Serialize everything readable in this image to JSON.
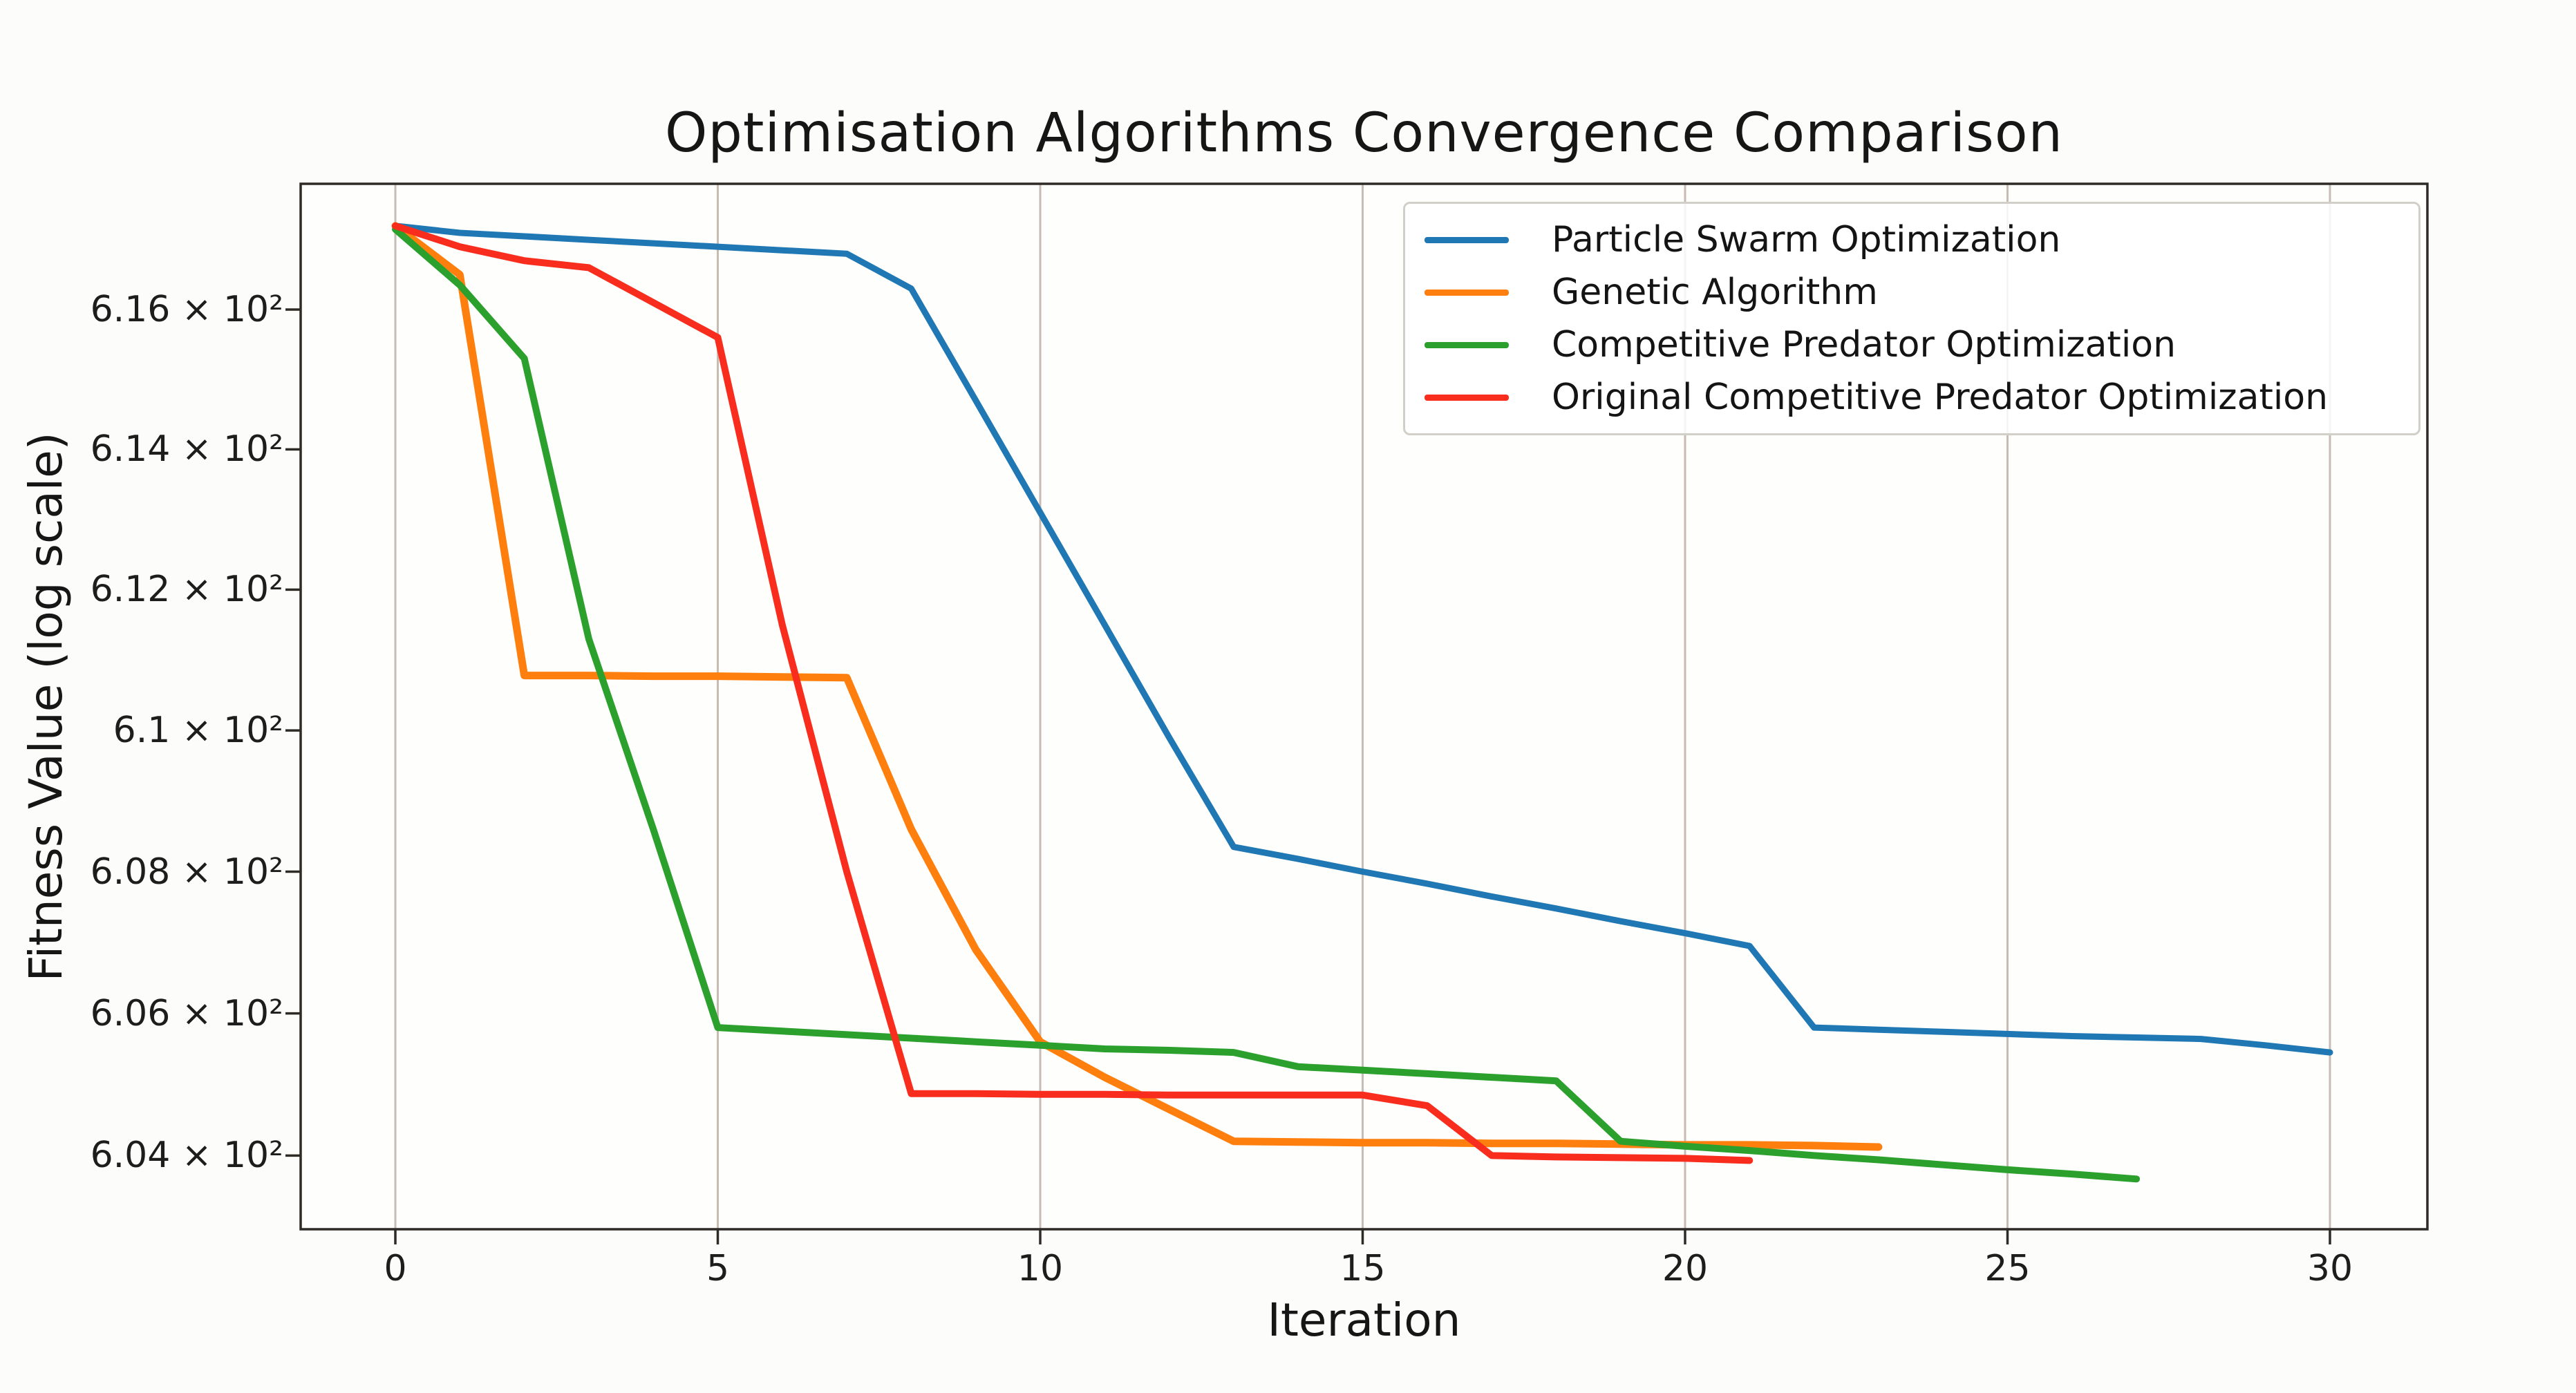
{
  "chart_data": {
    "type": "line",
    "title": "Optimisation Algorithms Convergence Comparison",
    "xlabel": "Iteration",
    "ylabel": "Fitness Value (log scale)",
    "x_ticks": [
      0,
      5,
      10,
      15,
      20,
      25,
      30
    ],
    "y_ticks": [
      {
        "value": 616,
        "label": "6.16 × 10²"
      },
      {
        "value": 614,
        "label": "6.14 × 10²"
      },
      {
        "value": 612,
        "label": "6.12 × 10²"
      },
      {
        "value": 610,
        "label": "6.1 × 10²"
      },
      {
        "value": 608,
        "label": "6.08 × 10²"
      },
      {
        "value": 606,
        "label": "6.06 × 10²"
      },
      {
        "value": 604,
        "label": "6.04 × 10²"
      }
    ],
    "xlim": [
      -1.5,
      31.5
    ],
    "ylim": [
      602.9,
      617.75
    ],
    "y_scale": "log",
    "grid": "vertical-only",
    "legend_position": "upper right",
    "colors": {
      "grid": "#c6bcb3",
      "spine": "#2e2a26",
      "tick_text": "#1d1d1d",
      "background": "#fcfcfa",
      "plot_background": "#fefefd"
    },
    "series": [
      {
        "name": "Particle Swarm Optimization",
        "color": "#1f77b4",
        "line_width": 9,
        "x": [
          0,
          1,
          2,
          3,
          4,
          5,
          6,
          7,
          8,
          9,
          10,
          11,
          12,
          13,
          14,
          15,
          16,
          17,
          18,
          19,
          20,
          21,
          22,
          23,
          24,
          25,
          26,
          27,
          28,
          29,
          30
        ],
        "y": [
          617.2,
          617.1,
          617.05,
          617.0,
          616.95,
          616.9,
          616.85,
          616.8,
          616.3,
          614.7,
          613.1,
          611.5,
          609.9,
          608.35,
          608.18,
          608.0,
          607.83,
          607.65,
          607.48,
          607.3,
          607.13,
          606.95,
          605.8,
          605.77,
          605.74,
          605.71,
          605.68,
          605.66,
          605.64,
          605.55,
          605.45
        ]
      },
      {
        "name": "Genetic Algorithm",
        "color": "#ff7f0e",
        "line_width": 11,
        "x": [
          0,
          1,
          2,
          3,
          4,
          5,
          6,
          7,
          8,
          9,
          10,
          11,
          12,
          13,
          14,
          15,
          16,
          17,
          18,
          19,
          20,
          21,
          22,
          23
        ],
        "y": [
          617.2,
          616.5,
          610.78,
          610.78,
          610.77,
          610.77,
          610.76,
          610.75,
          608.6,
          606.9,
          605.6,
          605.1,
          604.65,
          604.2,
          604.19,
          604.18,
          604.18,
          604.17,
          604.17,
          604.16,
          604.15,
          604.15,
          604.14,
          604.12
        ]
      },
      {
        "name": "Competitive Predator Optimization",
        "color": "#2ca02c",
        "line_width": 10,
        "x": [
          0,
          1,
          2,
          3,
          4,
          5,
          6,
          7,
          8,
          9,
          10,
          11,
          12,
          13,
          14,
          15,
          16,
          17,
          18,
          19,
          20,
          21,
          22,
          23,
          24,
          25,
          26,
          27
        ],
        "y": [
          617.15,
          616.35,
          615.3,
          611.3,
          608.6,
          605.8,
          605.75,
          605.7,
          605.65,
          605.6,
          605.55,
          605.5,
          605.48,
          605.45,
          605.25,
          605.2,
          605.15,
          605.1,
          605.05,
          604.2,
          604.13,
          604.07,
          604.0,
          603.94,
          603.87,
          603.8,
          603.74,
          603.67
        ]
      },
      {
        "name": "Original Competitive Predator Optimization",
        "color": "#f92d1e",
        "line_width": 10,
        "x": [
          0,
          1,
          2,
          3,
          4,
          5,
          6,
          7,
          8,
          9,
          10,
          11,
          12,
          13,
          14,
          15,
          16,
          17,
          18,
          19,
          20,
          21
        ],
        "y": [
          617.2,
          616.9,
          616.7,
          616.6,
          616.1,
          615.6,
          611.5,
          608.0,
          604.87,
          604.87,
          604.86,
          604.86,
          604.85,
          604.85,
          604.85,
          604.85,
          604.7,
          604.0,
          603.98,
          603.97,
          603.96,
          603.93
        ]
      }
    ]
  }
}
